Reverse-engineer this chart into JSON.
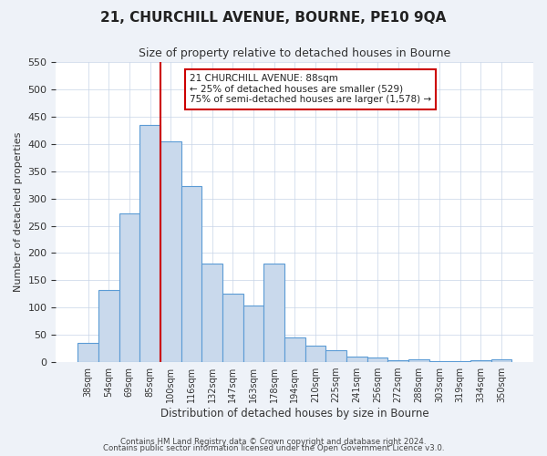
{
  "title": "21, CHURCHILL AVENUE, BOURNE, PE10 9QA",
  "subtitle": "Size of property relative to detached houses in Bourne",
  "xlabel": "Distribution of detached houses by size in Bourne",
  "ylabel": "Number of detached properties",
  "bar_labels": [
    "38sqm",
    "54sqm",
    "69sqm",
    "85sqm",
    "100sqm",
    "116sqm",
    "132sqm",
    "147sqm",
    "163sqm",
    "178sqm",
    "194sqm",
    "210sqm",
    "225sqm",
    "241sqm",
    "256sqm",
    "272sqm",
    "288sqm",
    "303sqm",
    "319sqm",
    "334sqm",
    "350sqm"
  ],
  "bar_values": [
    35,
    133,
    272,
    435,
    405,
    323,
    181,
    125,
    103,
    181,
    46,
    30,
    22,
    10,
    8,
    3,
    5,
    1,
    1,
    3,
    5
  ],
  "bar_color": "#c9d9ec",
  "bar_edge_color": "#5b9bd5",
  "vline_x": 3.5,
  "vline_color": "#cc0000",
  "annotation_title": "21 CHURCHILL AVENUE: 88sqm",
  "annotation_line1": "← 25% of detached houses are smaller (529)",
  "annotation_line2": "75% of semi-detached houses are larger (1,578) →",
  "annotation_box_edge": "#cc0000",
  "ylim": [
    0,
    550
  ],
  "yticks": [
    0,
    50,
    100,
    150,
    200,
    250,
    300,
    350,
    400,
    450,
    500,
    550
  ],
  "footer1": "Contains HM Land Registry data © Crown copyright and database right 2024.",
  "footer2": "Contains public sector information licensed under the Open Government Licence v3.0.",
  "bg_color": "#eef2f8",
  "plot_bg_color": "#ffffff"
}
